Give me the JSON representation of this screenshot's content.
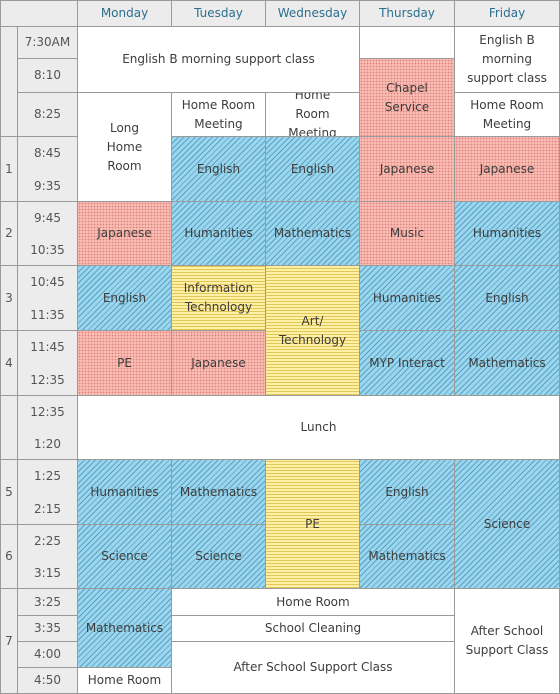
{
  "days": [
    "Monday",
    "Tuesday",
    "Wednesday",
    "Thursday",
    "Friday"
  ],
  "periods": [
    "1",
    "2",
    "3",
    "4",
    "5",
    "6",
    "7"
  ],
  "times": {
    "t0730": "7:30AM",
    "t0810": "8:10",
    "t0825": "8:25",
    "t0845": "8:45",
    "t0935": "9:35",
    "t0945": "9:45",
    "t1035": "10:35",
    "t1045": "10:45",
    "t1135": "11:35",
    "t1145": "11:45",
    "t1235": "12:35",
    "t1235b": "12:35",
    "t0120": "1:20",
    "t0125": "1:25",
    "t0215": "2:15",
    "t0225": "2:25",
    "t0315": "3:15",
    "t0325": "3:25",
    "t0335": "3:35",
    "t0400": "4:00",
    "t0450": "4:50"
  },
  "classes": {
    "english_b_support_mon_wed": "English B morning support class",
    "english_b_support_fri": "English B morning support class",
    "chapel_service": "Chapel Service",
    "long_home_room": "Long Home Room",
    "hr_meeting_tue": "Home Room Meeting",
    "hr_meeting_wed": "Home Room Meeting",
    "hr_meeting_fri": "Home Room Meeting",
    "p1_tue": "English",
    "p1_wed": "English",
    "p1_thu": "Japanese",
    "p1_fri": "Japanese",
    "p2_mon": "Japanese",
    "p2_tue": "Humanities",
    "p2_wed": "Mathematics",
    "p2_thu": "Music",
    "p2_fri": "Humanities",
    "p3_mon": "English",
    "p3_tue": "Information Technology",
    "p34_wed": "Art/ Technology",
    "p3_thu": "Humanities",
    "p3_fri": "English",
    "p4_mon": "PE",
    "p4_tue": "Japanese",
    "p4_thu": "MYP Interact",
    "p4_fri": "Mathematics",
    "lunch": "Lunch",
    "p5_mon": "Humanities",
    "p5_tue": "Mathematics",
    "p56_wed": "PE",
    "p5_thu": "English",
    "p56_fri": "Science",
    "p6_mon": "Science",
    "p6_tue": "Science",
    "p6_thu": "Mathematics",
    "p7_mon": "Mathematics",
    "mon_home_room": "Home Room",
    "home_room": "Home Room",
    "school_cleaning": "School Cleaning",
    "after_school_support": "After School Support Class",
    "after_school_support_fri": "After School Support Class"
  },
  "colors": {
    "blue": "#9ad6ee",
    "red": "#fbbbb2",
    "yellow": "#fff0a6",
    "header_text": "#2c6e8f",
    "grid": "#9a9a9a"
  }
}
